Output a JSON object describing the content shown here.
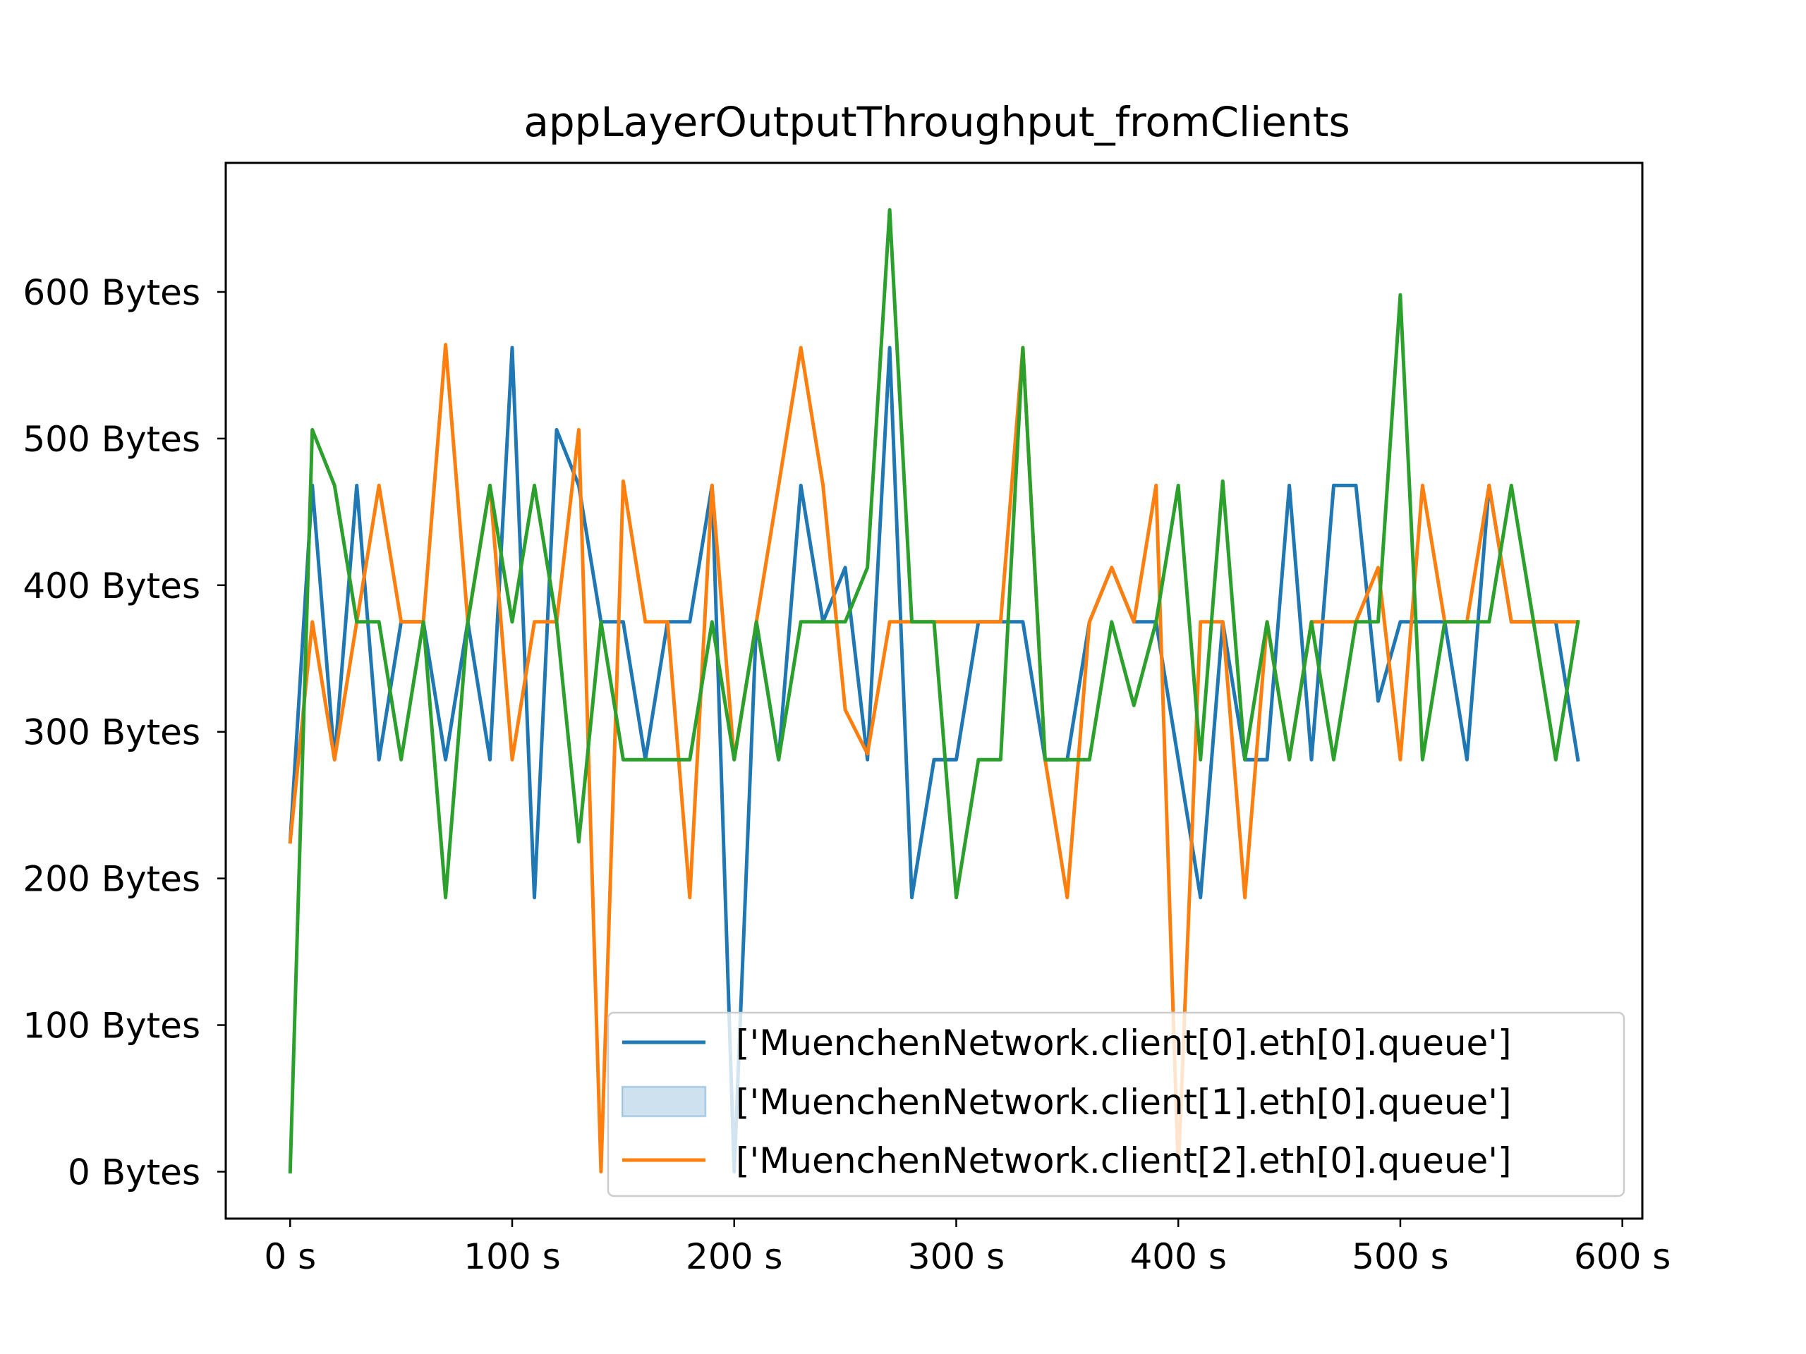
{
  "chart_data": {
    "type": "line",
    "title": "appLayerOutputThroughput_fromClients",
    "xlabel": "",
    "ylabel": "",
    "x_unit": " s",
    "y_unit": " Bytes",
    "xlim": [
      -29,
      609
    ],
    "ylim": [
      -32,
      688
    ],
    "xticks": [
      0,
      100,
      200,
      300,
      400,
      500,
      600
    ],
    "xtick_labels": [
      "0 s",
      "100 s",
      "200 s",
      "300 s",
      "400 s",
      "500 s",
      "600 s"
    ],
    "yticks": [
      0,
      100,
      200,
      300,
      400,
      500,
      600
    ],
    "ytick_labels": [
      "0 Bytes",
      "100 Bytes",
      "200 Bytes",
      "300 Bytes",
      "400 Bytes",
      "500 Bytes",
      "600 Bytes"
    ],
    "grid": false,
    "legend_position": "lower-right",
    "legend": [
      {
        "label": "['MuenchenNetwork.client[0].eth[0].queue']",
        "kind": "line",
        "color": "#1f77b4"
      },
      {
        "label": "['MuenchenNetwork.client[1].eth[0].queue']",
        "kind": "patch",
        "color": "#1f77b4"
      },
      {
        "label": "['MuenchenNetwork.client[2].eth[0].queue']",
        "kind": "line",
        "color": "#ff7f0e"
      }
    ],
    "x": [
      0,
      10,
      20,
      30,
      40,
      50,
      60,
      70,
      80,
      90,
      100,
      110,
      120,
      130,
      140,
      150,
      160,
      170,
      180,
      190,
      200,
      210,
      220,
      230,
      240,
      250,
      260,
      270,
      280,
      290,
      300,
      310,
      320,
      330,
      340,
      350,
      360,
      370,
      380,
      390,
      400,
      410,
      420,
      430,
      440,
      450,
      460,
      470,
      480,
      490,
      500,
      510,
      520,
      530,
      540,
      550,
      560,
      570,
      580
    ],
    "series": [
      {
        "color": "#1f77b4",
        "values": [
          225,
          468,
          281,
          468,
          281,
          375,
          375,
          281,
          375,
          281,
          562,
          187,
          506,
          468,
          375,
          375,
          281,
          375,
          375,
          468,
          0,
          375,
          281,
          468,
          375,
          412,
          281,
          562,
          187,
          281,
          281,
          375,
          375,
          375,
          281,
          281,
          375,
          412,
          375,
          375,
          281,
          187,
          375,
          281,
          281,
          468,
          281,
          468,
          468,
          321,
          375,
          375,
          375,
          281,
          468,
          375,
          375,
          375,
          281
        ]
      },
      {
        "color": "#ff7f0e",
        "values": [
          225,
          375,
          281,
          375,
          468,
          375,
          375,
          564,
          375,
          468,
          281,
          375,
          375,
          506,
          0,
          471,
          375,
          375,
          187,
          468,
          281,
          375,
          468,
          562,
          468,
          315,
          285,
          375,
          375,
          375,
          375,
          375,
          375,
          562,
          281,
          187,
          375,
          412,
          375,
          468,
          0,
          375,
          375,
          187,
          375,
          281,
          375,
          375,
          375,
          412,
          281,
          468,
          375,
          375,
          468,
          375,
          375,
          375,
          375
        ]
      },
      {
        "color": "#2ca02c",
        "values": [
          0,
          506,
          468,
          375,
          375,
          281,
          375,
          187,
          375,
          468,
          375,
          468,
          375,
          225,
          375,
          281,
          281,
          281,
          281,
          375,
          281,
          375,
          281,
          375,
          375,
          375,
          412,
          656,
          375,
          375,
          187,
          281,
          281,
          562,
          281,
          281,
          281,
          375,
          318,
          375,
          468,
          281,
          471,
          281,
          375,
          281,
          375,
          281,
          375,
          375,
          598,
          281,
          375,
          375,
          375,
          468,
          375,
          281,
          375
        ]
      }
    ]
  }
}
